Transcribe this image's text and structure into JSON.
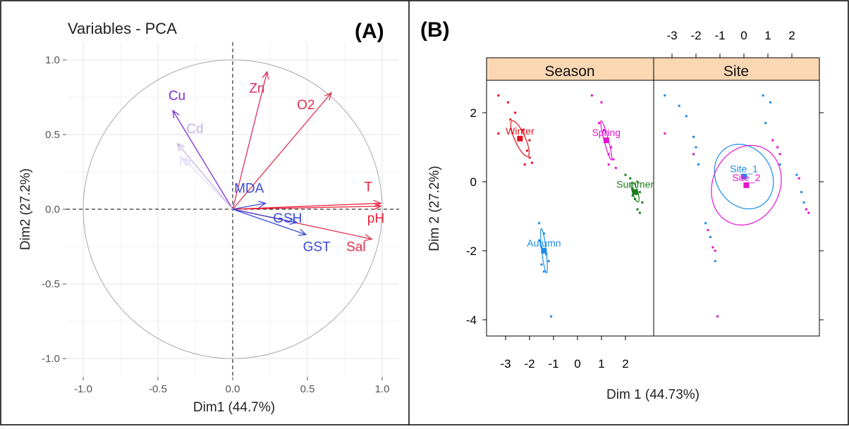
{
  "panels": {
    "a": {
      "label": "(A)"
    },
    "b": {
      "label": "(B)"
    }
  },
  "chart_data": [
    {
      "type": "scatter",
      "title": "Variables - PCA",
      "xlabel": "Dim1 (44.7%)",
      "ylabel": "Dim2 (27.2%)",
      "xlim": [
        -1.0,
        1.0
      ],
      "ylim": [
        -1.0,
        1.0
      ],
      "xticks": [
        "-1.0",
        "-0.5",
        "0.0",
        "0.5",
        "1.0"
      ],
      "yticks": [
        "-1.0",
        "-0.5",
        "0.0",
        "0.5",
        "1.0"
      ],
      "grid": true,
      "variables": [
        {
          "name": "Zn",
          "x": 0.23,
          "y": 0.92,
          "color": "#d62f5f",
          "lx": 0.11,
          "ly": 0.78
        },
        {
          "name": "O2",
          "x": 0.66,
          "y": 0.78,
          "color": "#e0304f",
          "lx": 0.43,
          "ly": 0.67
        },
        {
          "name": "Cu",
          "x": -0.4,
          "y": 0.66,
          "color": "#7b2ed0",
          "lx": -0.43,
          "ly": 0.73
        },
        {
          "name": "Cd",
          "x": -0.37,
          "y": 0.44,
          "color": "#c6b0ea",
          "lx": -0.31,
          "ly": 0.51
        },
        {
          "name": "Ni",
          "x": -0.33,
          "y": 0.34,
          "color": "#e2dcf6",
          "lx": -0.36,
          "ly": 0.29
        },
        {
          "name": "T",
          "x": 0.99,
          "y": 0.04,
          "color": "#e8213a",
          "lx": 0.88,
          "ly": 0.12
        },
        {
          "name": "pH",
          "x": 0.99,
          "y": 0.02,
          "color": "#e8213a",
          "lx": 0.9,
          "ly": -0.09
        },
        {
          "name": "Sal",
          "x": 0.93,
          "y": -0.2,
          "color": "#e0304f",
          "lx": 0.76,
          "ly": -0.28
        },
        {
          "name": "MDA",
          "x": 0.22,
          "y": 0.04,
          "color": "#3a48d8",
          "lx": 0.01,
          "ly": 0.11
        },
        {
          "name": "GSH",
          "x": 0.43,
          "y": -0.09,
          "color": "#3a48d8",
          "lx": 0.27,
          "ly": -0.09
        },
        {
          "name": "GST",
          "x": 0.49,
          "y": -0.17,
          "color": "#3a48d8",
          "lx": 0.47,
          "ly": -0.28
        }
      ]
    },
    {
      "type": "scatter",
      "title": "",
      "xlabel": "Dim 1 (44.73%)",
      "ylabel": "Dim 2 (27.2%)",
      "xlim": [
        -3.8,
        3.4
      ],
      "ylim": [
        -4.7,
        3.0
      ],
      "xticks": [
        "-3",
        "-2",
        "-1",
        "0",
        "1",
        "2"
      ],
      "yticks": [
        "-4",
        "-2",
        "0",
        "2"
      ],
      "strips": [
        "Season",
        "Site"
      ],
      "season_groups": [
        {
          "name": "Winter",
          "color": "#e3101c",
          "cx": -2.4,
          "cy": 1.25,
          "points": [
            [
              -3.3,
              2.5
            ],
            [
              -2.9,
              2.3
            ],
            [
              -2.6,
              2.0
            ],
            [
              -2.8,
              1.8
            ],
            [
              -3.3,
              1.4
            ],
            [
              -2.3,
              1.5
            ],
            [
              -2.0,
              1.2
            ],
            [
              -2.1,
              0.9
            ],
            [
              -2.0,
              0.7
            ],
            [
              -1.9,
              0.55
            ],
            [
              -2.2,
              0.5
            ]
          ]
        },
        {
          "name": "Spring",
          "color": "#e413d2",
          "cx": 1.2,
          "cy": 1.2,
          "points": [
            [
              0.6,
              2.5
            ],
            [
              1.0,
              2.3
            ],
            [
              0.9,
              1.7
            ],
            [
              1.1,
              1.5
            ],
            [
              1.2,
              1.2
            ],
            [
              1.4,
              1.0
            ],
            [
              1.3,
              0.8
            ],
            [
              1.5,
              0.65
            ],
            [
              1.3,
              0.5
            ],
            [
              1.6,
              0.4
            ]
          ]
        },
        {
          "name": "Summer",
          "color": "#1a7d1a",
          "cx": 2.4,
          "cy": -0.3,
          "points": [
            [
              2.0,
              0.2
            ],
            [
              2.2,
              0.1
            ],
            [
              2.5,
              0.0
            ],
            [
              2.3,
              -0.2
            ],
            [
              2.6,
              -0.3
            ],
            [
              2.4,
              -0.5
            ],
            [
              2.7,
              -0.6
            ],
            [
              2.5,
              -0.8
            ],
            [
              2.6,
              -0.9
            ],
            [
              2.3,
              -0.4
            ]
          ]
        },
        {
          "name": "Autumn",
          "color": "#1a8ce6",
          "cx": -1.4,
          "cy": -2.0,
          "points": [
            [
              -1.6,
              -1.2
            ],
            [
              -1.4,
              -1.5
            ],
            [
              -1.6,
              -1.7
            ],
            [
              -1.5,
              -1.9
            ],
            [
              -1.3,
              -2.1
            ],
            [
              -1.5,
              -2.4
            ],
            [
              -1.4,
              -2.6
            ],
            [
              -1.2,
              -2.3
            ],
            [
              -1.1,
              -3.9
            ]
          ]
        }
      ],
      "site_groups": [
        {
          "name": "Site_1",
          "color": "#1a8ce6",
          "cx": 0.0,
          "cy": 0.15,
          "points": [
            [
              -3.3,
              2.5
            ],
            [
              -2.7,
              2.2
            ],
            [
              -2.4,
              1.9
            ],
            [
              -2.1,
              1.3
            ],
            [
              -2.0,
              1.0
            ],
            [
              -1.9,
              0.5
            ],
            [
              -1.6,
              -1.2
            ],
            [
              -1.4,
              -1.6
            ],
            [
              -1.2,
              -2.3
            ],
            [
              0.8,
              2.5
            ],
            [
              1.1,
              2.3
            ],
            [
              0.9,
              1.7
            ],
            [
              1.5,
              0.5
            ],
            [
              2.2,
              0.2
            ],
            [
              2.4,
              -0.3
            ],
            [
              2.5,
              -0.6
            ]
          ]
        },
        {
          "name": "Site_2",
          "color": "#e413d2",
          "cx": 0.1,
          "cy": -0.1,
          "points": [
            [
              -3.3,
              1.4
            ],
            [
              -2.1,
              0.8
            ],
            [
              -1.5,
              -1.4
            ],
            [
              -1.3,
              -1.9
            ],
            [
              -1.2,
              -2.0
            ],
            [
              -1.1,
              -3.9
            ],
            [
              1.2,
              1.2
            ],
            [
              1.4,
              1.0
            ],
            [
              1.5,
              0.8
            ],
            [
              2.3,
              0.1
            ],
            [
              2.6,
              -0.8
            ],
            [
              2.7,
              -0.9
            ]
          ]
        }
      ]
    }
  ]
}
